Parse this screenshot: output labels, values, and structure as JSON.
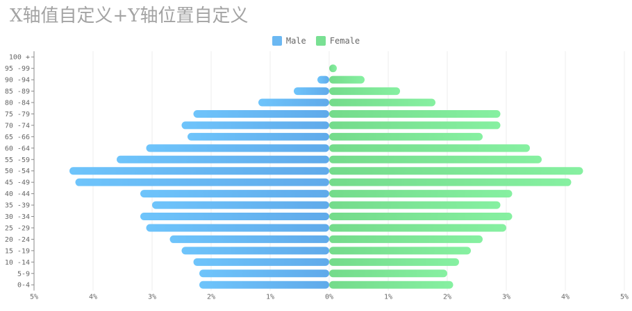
{
  "chart_data": {
    "type": "bar",
    "orientation": "horizontal",
    "title": "X轴值自定义+Y轴位置自定义",
    "legend": {
      "position": "top-center",
      "items": [
        {
          "name": "Male",
          "color": "#6bb8f2"
        },
        {
          "name": "Female",
          "color": "#79e093"
        }
      ]
    },
    "categories": [
      "0-4",
      "5-9",
      "10 -14",
      "15 -19",
      "20 -24",
      "25 -29",
      "30 -34",
      "35 -39",
      "40 -44",
      "45 -49",
      "50 -54",
      "55 -59",
      "60 -64",
      "65 -66",
      "70 -74",
      "75 -79",
      "80 -84",
      "85 -89",
      "90 -94",
      "95 -99",
      "100 +"
    ],
    "series": [
      {
        "name": "Male",
        "values": [
          -2.2,
          -2.2,
          -2.3,
          -2.5,
          -2.7,
          -3.1,
          -3.2,
          -3.0,
          -3.2,
          -4.3,
          -4.4,
          -3.6,
          -3.1,
          -2.4,
          -2.5,
          -2.3,
          -1.2,
          -0.6,
          -0.2,
          0,
          0
        ]
      },
      {
        "name": "Female",
        "values": [
          2.1,
          2.0,
          2.2,
          2.4,
          2.6,
          3.0,
          3.1,
          2.9,
          3.1,
          4.1,
          4.3,
          3.6,
          3.4,
          2.6,
          2.9,
          2.9,
          1.8,
          1.2,
          0.6,
          0.1,
          0
        ]
      }
    ],
    "xlim": [
      -5,
      5
    ],
    "xticks": [
      -5,
      -4,
      -3,
      -2,
      -1,
      0,
      1,
      2,
      3,
      4,
      5
    ],
    "xtick_labels": [
      "5%",
      "4%",
      "3%",
      "2%",
      "1%",
      "0%",
      "1%",
      "2%",
      "3%",
      "4%",
      "5%"
    ],
    "grid": true
  }
}
